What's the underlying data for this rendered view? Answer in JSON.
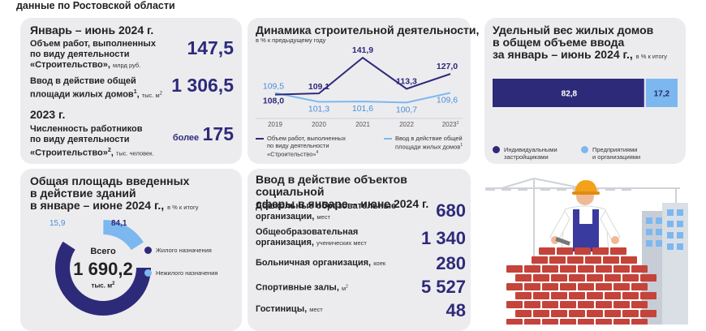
{
  "page_header": "данные по Ростовской области",
  "card1": {
    "period": "Январь – июнь 2024 г.",
    "item1_label_l1": "Объем работ, выполненных",
    "item1_label_l2": "по виду деятельности",
    "item1_label_l3": "«Строительство»",
    "item1_unit": "млрд руб.",
    "item1_value": "147,5",
    "item2_label_l1": "Ввод в действие общей",
    "item2_label_l2": "площади жилых домов",
    "item2_sup": "1",
    "item2_unit": "тыс. м",
    "item2_unit_sup": "2",
    "item2_value": "1 306,5",
    "year": "2023 г.",
    "item3_label_l1": "Численность работников",
    "item3_label_l2": "по виду деятельности",
    "item3_label_l3": "«Строительство»",
    "item3_sup": "2",
    "item3_unit": "тыс. человек.",
    "item3_prefix": "более",
    "item3_value": "175"
  },
  "card2": {
    "title": "Динамика строительной деятельности,",
    "subtitle": "в % к предыдущему году",
    "x_tick_sup": "3",
    "legend1_l1": "Объем работ, выполненных",
    "legend1_l2": "по виду деятельности",
    "legend1_l3": "«Строительство»",
    "legend1_sup": "4",
    "legend2_l1": "Ввод в действие общей",
    "legend2_l2": "площади жилых домов",
    "legend2_sup": "1"
  },
  "chart_data": [
    {
      "type": "line",
      "title": "Динамика строительной деятельности,",
      "subtitle": "в % к предыдущему году",
      "categories": [
        "2019",
        "2020",
        "2021",
        "2022",
        "2023"
      ],
      "series": [
        {
          "name": "Объем работ, выполненных по виду деятельности «Строительство»",
          "values": [
            108.0,
            109.1,
            141.9,
            113.3,
            127.0
          ],
          "labels": [
            "108,0",
            "109,1",
            "141,9",
            "113,3",
            "127,0"
          ],
          "color": "#2e2a7a"
        },
        {
          "name": "Ввод в действие общей площади жилых домов",
          "values": [
            109.5,
            101.3,
            101.6,
            100.7,
            109.6
          ],
          "labels": [
            "109,5",
            "101,3",
            "101,6",
            "100,7",
            "109,6"
          ],
          "color": "#7cb8ef"
        }
      ],
      "ylim": [
        95,
        145
      ],
      "grid": false,
      "legend": "bottom"
    },
    {
      "type": "bar",
      "title": "Удельный вес жилых домов в общем объеме ввода за январь – июнь 2024 г.",
      "unit": "в % к итогу",
      "series": [
        {
          "name": "Индивидуальными застройщиками",
          "values": [
            82.8
          ],
          "label": "82,8",
          "color": "#2e2a7a"
        },
        {
          "name": "Предприятиями и организациями",
          "values": [
            17.2
          ],
          "label": "17,2",
          "color": "#7cb8ef"
        }
      ],
      "stacked": true,
      "legend": "bottom"
    },
    {
      "type": "pie",
      "title": "Общая площадь введенных в действие зданий в январе – июне 2024 г.",
      "unit": "в % к итогу",
      "center_label": "Всего",
      "center_value": "1 690,2",
      "center_unit": "тыс. м",
      "center_unit_sup": "2",
      "slices": [
        {
          "name": "Жилого назначения",
          "value": 84.1,
          "label": "84,1",
          "color": "#2e2a7a"
        },
        {
          "name": "Нежилого назначения",
          "value": 15.9,
          "label": "15,9",
          "color": "#7cb8ef"
        }
      ],
      "legend": "right"
    }
  ],
  "card3": {
    "title_l1": "Удельный вес жилых домов",
    "title_l2": "в общем объеме ввода",
    "title_l3": "за январь – июнь 2024 г.,",
    "unit": "в % к итогу",
    "legend1_l1": "Индивидуальными",
    "legend1_l2": "застройщиками",
    "legend2_l1": "Предприятиями",
    "legend2_l2": "и организациями"
  },
  "card4": {
    "title_l1": "Общая площадь введенных",
    "title_l2": "в действие зданий",
    "title_l3": "в январе – июне 2024 г.,",
    "unit": "в % к итогу",
    "legend1": "Жилого назначения",
    "legend2": "Нежилого назначения"
  },
  "card5": {
    "title_l1": "Ввод в действие объектов социальной",
    "title_l2": "сферы в январе – июне 2024 г.",
    "rows": [
      {
        "label_l1": "Дошкольные образовательные",
        "label_l2": "организации,",
        "unit": "мест",
        "value": "680"
      },
      {
        "label_l1": "Общеобразовательная",
        "label_l2": "организация,",
        "unit": "ученических мест",
        "value": "1 340"
      },
      {
        "label_l1": "Больничная организация,",
        "label_l2": "",
        "unit": "коек",
        "value": "280"
      },
      {
        "label_l1": "Спортивные залы,",
        "label_l2": "",
        "unit": "м",
        "unit_sup": "2",
        "value": "5 527"
      },
      {
        "label_l1": "Гостиницы,",
        "label_l2": "",
        "unit": "мест",
        "value": "48"
      }
    ]
  },
  "colors": {
    "dark": "#2e2a7a",
    "light": "#7cb8ef",
    "card": "#ececef",
    "brick": "#c4433a"
  },
  "illustration": {
    "icon": "builder-with-bricks-icon"
  }
}
